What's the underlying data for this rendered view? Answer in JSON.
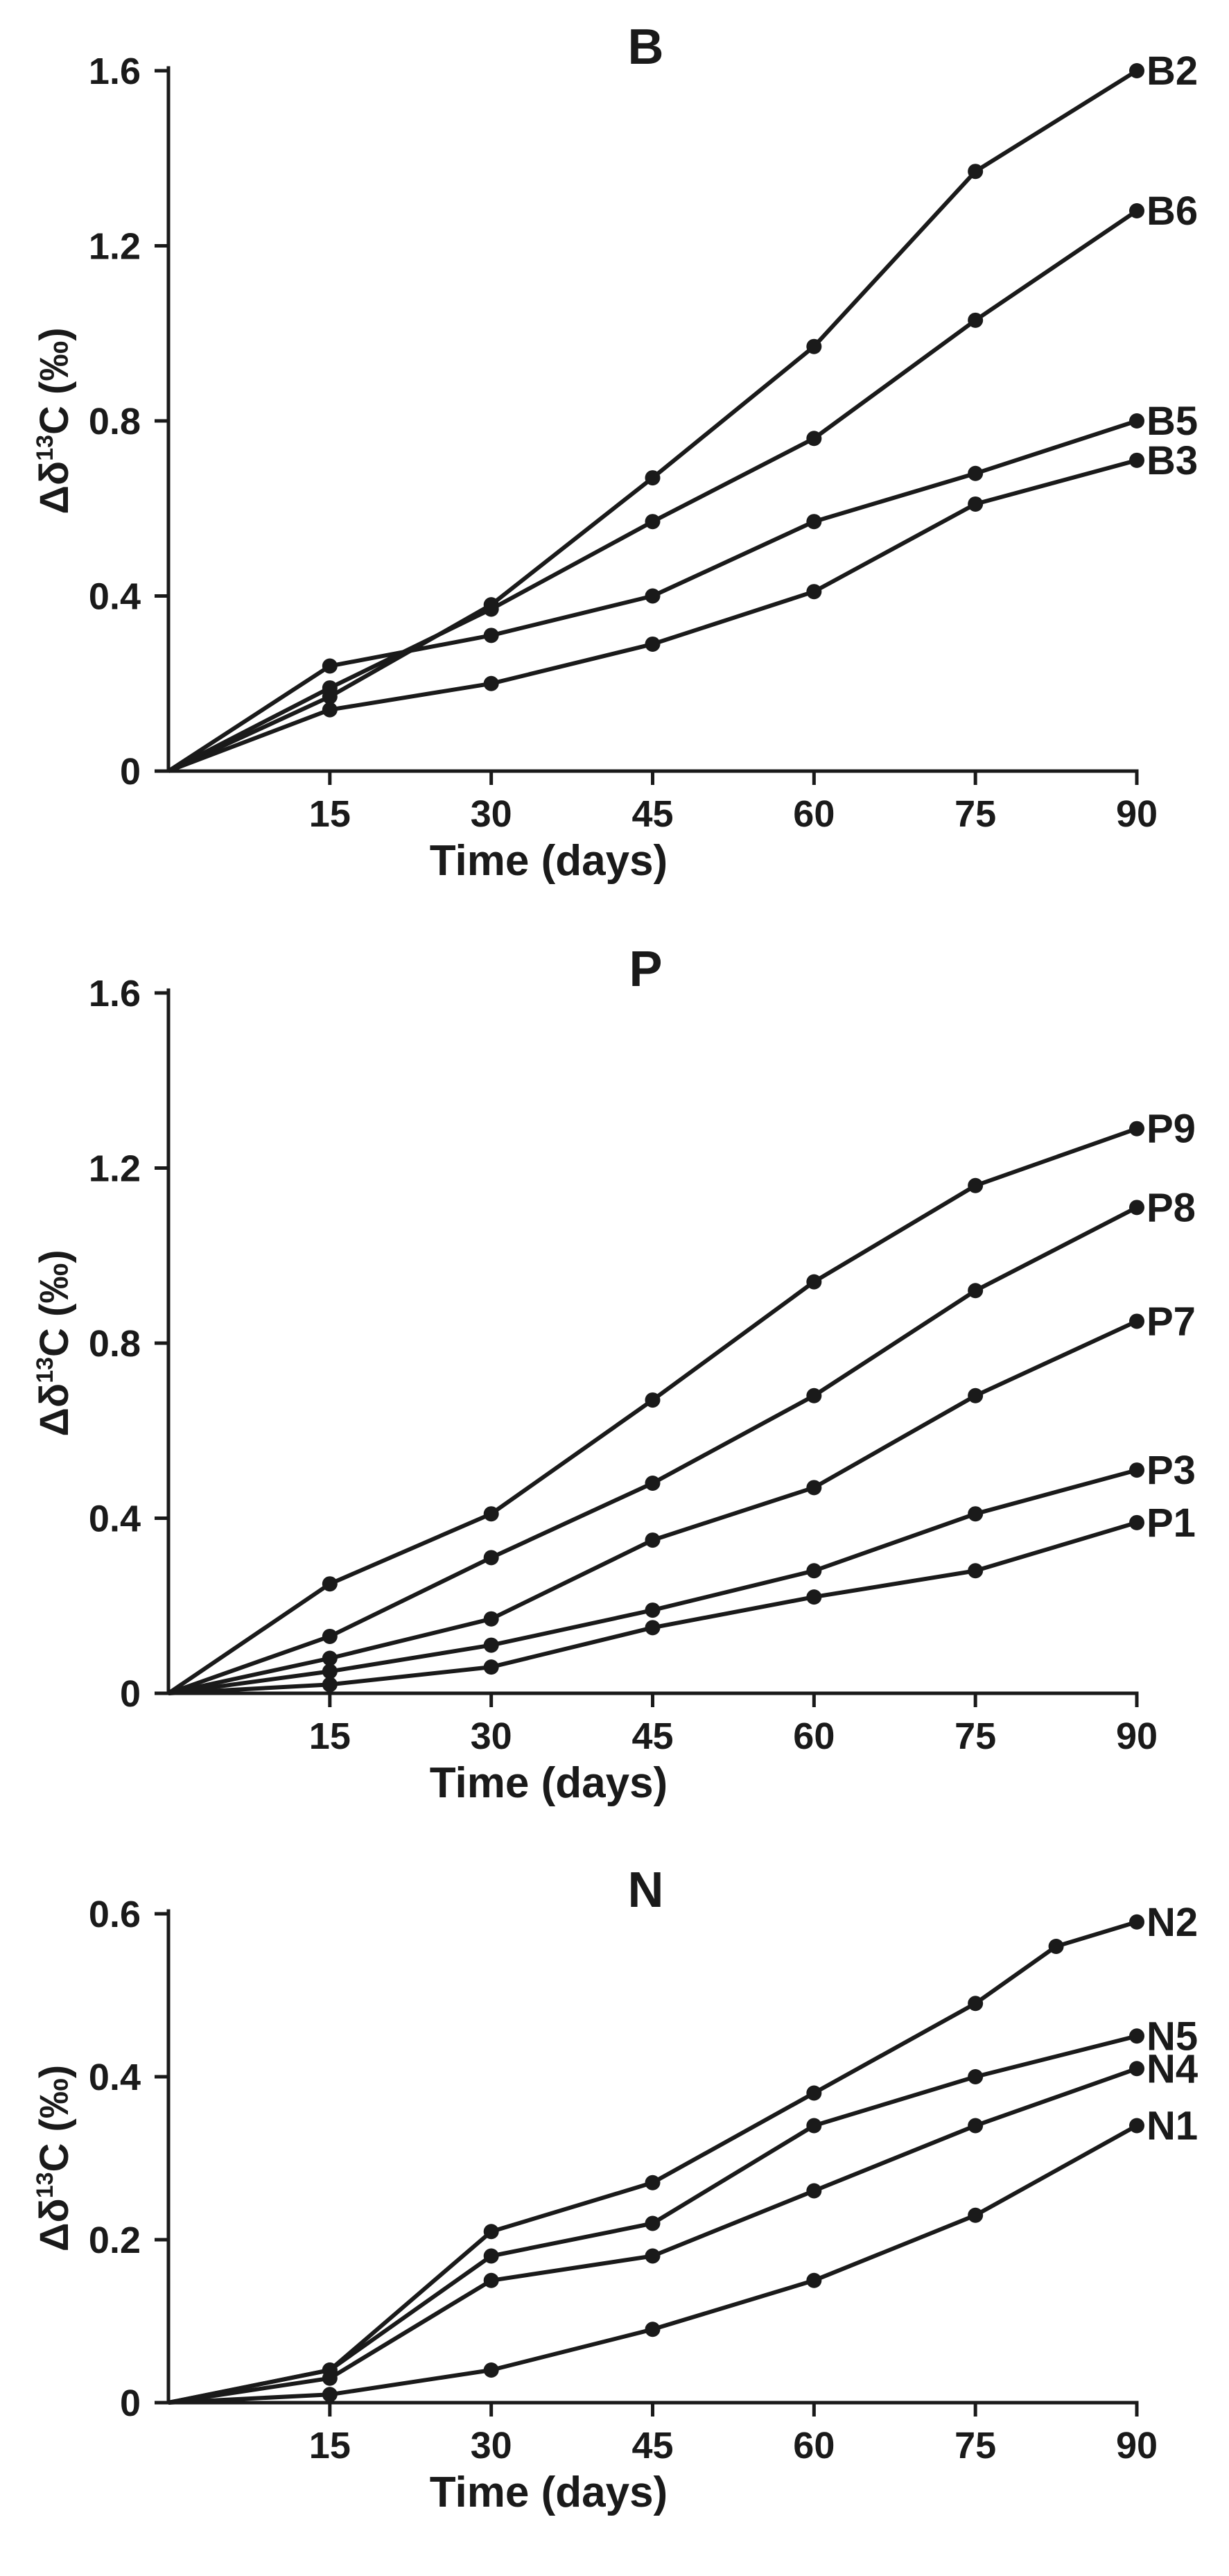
{
  "chart_data": [
    {
      "type": "line",
      "title": "B",
      "xlabel": "Time (days)",
      "ylabel_main": "Δδ",
      "ylabel_sup": "13",
      "ylabel_rest": "C (‰)",
      "xlim": [
        0,
        90
      ],
      "ylim": [
        0,
        1.6
      ],
      "x_ticks": [
        15,
        30,
        45,
        60,
        75,
        90
      ],
      "y_ticks": [
        0,
        0.4,
        0.8,
        1.2,
        1.6
      ],
      "y_tick_labels": [
        "0",
        "0.4",
        "0.8",
        "1.2",
        "1.6"
      ],
      "series": [
        {
          "name": "B2",
          "x": [
            0,
            15,
            30,
            45,
            60,
            75,
            90
          ],
          "values": [
            0,
            0.17,
            0.38,
            0.67,
            0.97,
            1.37,
            1.6
          ]
        },
        {
          "name": "B6",
          "x": [
            0,
            15,
            30,
            45,
            60,
            75,
            90
          ],
          "values": [
            0,
            0.19,
            0.37,
            0.57,
            0.76,
            1.03,
            1.28
          ]
        },
        {
          "name": "B5",
          "x": [
            0,
            15,
            30,
            45,
            60,
            75,
            90
          ],
          "values": [
            0,
            0.24,
            0.31,
            0.4,
            0.57,
            0.68,
            0.8
          ]
        },
        {
          "name": "B3",
          "x": [
            0,
            15,
            30,
            45,
            60,
            75,
            90
          ],
          "values": [
            0,
            0.14,
            0.2,
            0.29,
            0.41,
            0.61,
            0.71
          ]
        }
      ]
    },
    {
      "type": "line",
      "title": "P",
      "xlabel": "Time (days)",
      "ylabel_main": "Δδ",
      "ylabel_sup": "13",
      "ylabel_rest": "C (‰)",
      "xlim": [
        0,
        90
      ],
      "ylim": [
        0,
        1.6
      ],
      "x_ticks": [
        15,
        30,
        45,
        60,
        75,
        90
      ],
      "y_ticks": [
        0,
        0.4,
        0.8,
        1.2,
        1.6
      ],
      "y_tick_labels": [
        "0",
        "0.4",
        "0.8",
        "1.2",
        "1.6"
      ],
      "series": [
        {
          "name": "P9",
          "x": [
            0,
            15,
            30,
            45,
            60,
            75,
            90
          ],
          "values": [
            0,
            0.25,
            0.41,
            0.67,
            0.94,
            1.16,
            1.29
          ]
        },
        {
          "name": "P8",
          "x": [
            0,
            15,
            30,
            45,
            60,
            75,
            90
          ],
          "values": [
            0,
            0.13,
            0.31,
            0.48,
            0.68,
            0.92,
            1.11
          ]
        },
        {
          "name": "P7",
          "x": [
            0,
            15,
            30,
            45,
            60,
            75,
            90
          ],
          "values": [
            0,
            0.08,
            0.17,
            0.35,
            0.47,
            0.68,
            0.85
          ]
        },
        {
          "name": "P3",
          "x": [
            0,
            15,
            30,
            45,
            60,
            75,
            90
          ],
          "values": [
            0,
            0.05,
            0.11,
            0.19,
            0.28,
            0.41,
            0.51
          ]
        },
        {
          "name": "P1",
          "x": [
            0,
            15,
            30,
            45,
            60,
            75,
            90
          ],
          "values": [
            0,
            0.02,
            0.06,
            0.15,
            0.22,
            0.28,
            0.39
          ]
        }
      ]
    },
    {
      "type": "line",
      "title": "N",
      "xlabel": "Time (days)",
      "ylabel_main": "Δδ",
      "ylabel_sup": "13",
      "ylabel_rest": "C (‰)",
      "xlim": [
        0,
        90
      ],
      "ylim": [
        0,
        0.6
      ],
      "x_ticks": [
        15,
        30,
        45,
        60,
        75,
        90
      ],
      "y_ticks": [
        0,
        0.2,
        0.4,
        0.6
      ],
      "y_tick_labels": [
        "0",
        "0.2",
        "0.4",
        "0.6"
      ],
      "series": [
        {
          "name": "N2",
          "x": [
            0,
            15,
            30,
            45,
            60,
            75,
            82.5,
            90
          ],
          "values": [
            0,
            0.04,
            0.21,
            0.27,
            0.38,
            0.49,
            0.56,
            0.59
          ]
        },
        {
          "name": "N5",
          "x": [
            0,
            15,
            30,
            45,
            60,
            75,
            90
          ],
          "values": [
            0,
            0.04,
            0.18,
            0.22,
            0.34,
            0.4,
            0.45
          ]
        },
        {
          "name": "N4",
          "x": [
            0,
            15,
            30,
            45,
            60,
            75,
            90
          ],
          "values": [
            0,
            0.03,
            0.15,
            0.18,
            0.26,
            0.34,
            0.41
          ]
        },
        {
          "name": "N1",
          "x": [
            0,
            15,
            30,
            45,
            60,
            75,
            90
          ],
          "values": [
            0,
            0.01,
            0.04,
            0.09,
            0.15,
            0.23,
            0.34
          ]
        }
      ]
    }
  ]
}
